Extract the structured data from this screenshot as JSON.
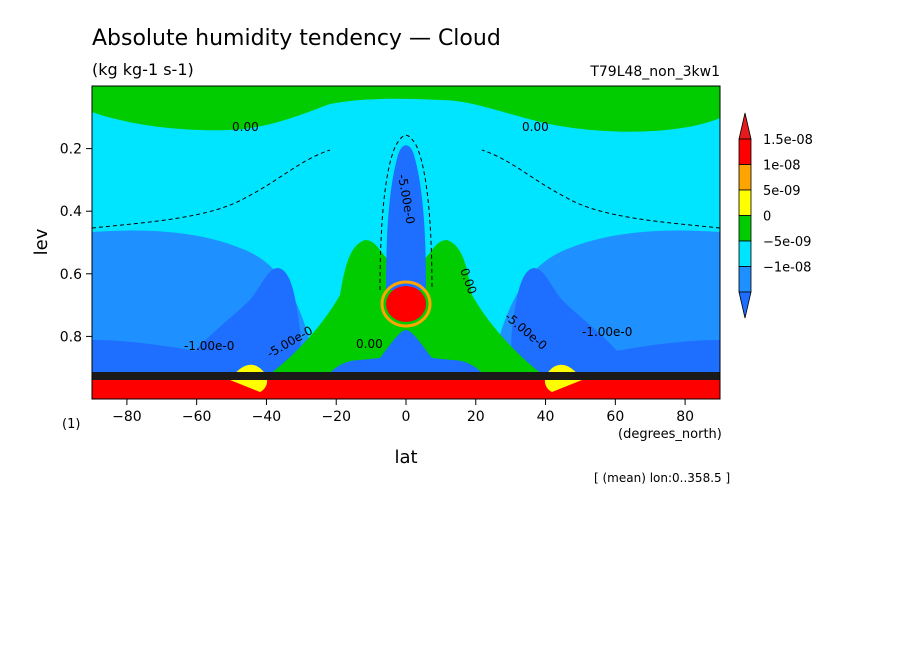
{
  "chart_data": {
    "type": "heatmap",
    "title": "Absolute humidity tendency — Cloud",
    "subtitle": "(kg kg-1 s-1)",
    "run_label": "T79L48_non_3kw1",
    "xlabel": "lat",
    "x_units": "(degrees_north)",
    "ylabel": "lev",
    "y_units": "(1)",
    "xlim": [
      -90,
      90
    ],
    "ylim": [
      0,
      1
    ],
    "y_inverted": true,
    "x_ticks": [
      -80,
      -60,
      -40,
      -20,
      0,
      20,
      40,
      60,
      80
    ],
    "y_ticks": [
      0.2,
      0.4,
      0.6,
      0.8
    ],
    "footnote": "[ (mean) lon:0..358.5 ]",
    "contour_labels": [
      "0.00",
      "0.00",
      "-5.00e-0",
      "0.00",
      "-1.00e-0",
      "0.00",
      "-5.00e-0",
      "-5.00e-0",
      "-1.00e-0"
    ],
    "colorbar": {
      "levels": [
        "1.5e-08",
        "1e-08",
        "5e-09",
        "0",
        "-5e-09",
        "-1e-08"
      ],
      "colors": [
        "#ff0000",
        "#ffa500",
        "#ffff00",
        "#00cc00",
        "#00e5ff",
        "#1e90ff"
      ],
      "over_color": "#e41a1c",
      "under_color": "#1e6eff"
    }
  }
}
